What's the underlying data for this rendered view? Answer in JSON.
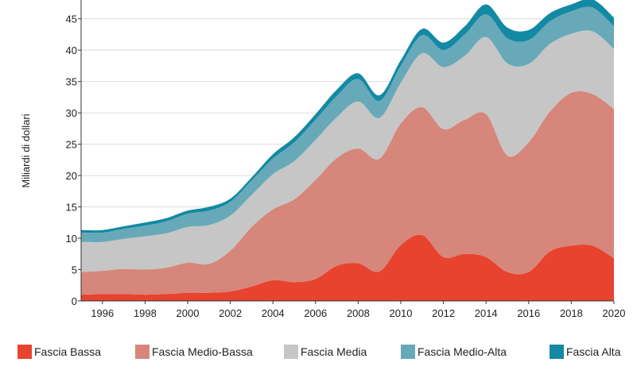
{
  "chart_data": {
    "type": "area",
    "stacked": true,
    "ylabel": "Miliardi di dollari",
    "xlabel": "",
    "ylim": [
      0,
      48
    ],
    "yticks": [
      0,
      5,
      10,
      15,
      20,
      25,
      30,
      35,
      40,
      45
    ],
    "xticks": [
      1996,
      1998,
      2000,
      2002,
      2004,
      2006,
      2008,
      2010,
      2012,
      2014,
      2016,
      2018,
      2020
    ],
    "xlim": [
      1995,
      2020
    ],
    "grid": "horizontal",
    "legend_position": "bottom",
    "x": [
      1995,
      1996,
      1997,
      1998,
      1999,
      2000,
      2001,
      2002,
      2003,
      2004,
      2005,
      2006,
      2007,
      2008,
      2009,
      2010,
      2011,
      2012,
      2013,
      2014,
      2015,
      2016,
      2017,
      2018,
      2019,
      2020
    ],
    "series": [
      {
        "name": "Fascia Bassa",
        "color": "#e8432e",
        "values": [
          1.0,
          1.1,
          1.1,
          1.0,
          1.1,
          1.3,
          1.3,
          1.5,
          2.3,
          3.3,
          3.0,
          3.5,
          5.6,
          6.0,
          4.7,
          8.9,
          10.5,
          7.0,
          7.5,
          7.0,
          4.6,
          4.6,
          7.9,
          8.8,
          8.8,
          6.8
        ]
      },
      {
        "name": "Fascia Medio-Bassa",
        "color": "#d6867a",
        "values": [
          3.6,
          3.7,
          4.0,
          4.0,
          4.2,
          4.8,
          4.6,
          6.5,
          9.5,
          11.3,
          13.2,
          15.8,
          17.2,
          18.3,
          18.0,
          19.4,
          20.4,
          20.4,
          21.4,
          22.8,
          18.6,
          20.7,
          22.3,
          24.4,
          24.2,
          23.8
        ]
      },
      {
        "name": "Fascia Media",
        "color": "#c6c6c6",
        "values": [
          4.8,
          4.6,
          4.8,
          5.3,
          5.5,
          5.7,
          6.2,
          5.6,
          5.1,
          5.6,
          6.1,
          6.4,
          6.5,
          7.5,
          6.5,
          6.5,
          8.6,
          9.9,
          10.2,
          12.3,
          14.7,
          12.5,
          10.8,
          9.4,
          10.0,
          9.6
        ]
      },
      {
        "name": "Fascia Medio-Alta",
        "color": "#68a9b9",
        "values": [
          1.5,
          1.5,
          1.6,
          1.7,
          1.9,
          2.1,
          2.3,
          2.2,
          2.3,
          2.5,
          3.0,
          3.2,
          3.4,
          3.6,
          2.7,
          2.7,
          2.9,
          2.7,
          3.4,
          3.6,
          4.0,
          3.8,
          3.6,
          3.6,
          3.8,
          3.6
        ]
      },
      {
        "name": "Fascia Alta",
        "color": "#1489a3",
        "values": [
          0.4,
          0.4,
          0.4,
          0.5,
          0.5,
          0.5,
          0.6,
          0.5,
          0.5,
          0.7,
          0.8,
          0.9,
          1.0,
          0.9,
          0.9,
          0.9,
          1.0,
          1.2,
          1.3,
          1.6,
          1.7,
          1.6,
          1.3,
          1.1,
          1.3,
          1.4
        ]
      }
    ]
  }
}
